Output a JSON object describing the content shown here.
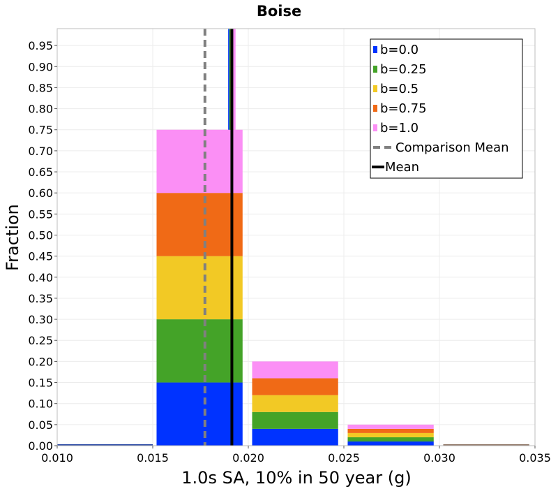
{
  "chart_data": {
    "type": "bar",
    "subtype": "stacked-histogram",
    "title": "Boise",
    "xlabel": "1.0s SA, 10% in 50 year (g)",
    "ylabel": "Fraction",
    "xlim": [
      0.01,
      0.035
    ],
    "ylim": [
      0.0,
      0.99
    ],
    "xticks": [
      "0.010",
      "0.015",
      "0.020",
      "0.025",
      "0.030",
      "0.035"
    ],
    "yticks": [
      "0.00",
      "0.05",
      "0.10",
      "0.15",
      "0.20",
      "0.25",
      "0.30",
      "0.35",
      "0.40",
      "0.45",
      "0.50",
      "0.55",
      "0.60",
      "0.65",
      "0.70",
      "0.75",
      "0.80",
      "0.85",
      "0.90",
      "0.95"
    ],
    "grid": true,
    "bins": [
      {
        "x0": 0.01,
        "x1": 0.015
      },
      {
        "x0": 0.0152,
        "x1": 0.0197
      },
      {
        "x0": 0.0202,
        "x1": 0.0247
      },
      {
        "x0": 0.0252,
        "x1": 0.0297
      },
      {
        "x0": 0.0302,
        "x1": 0.0347
      }
    ],
    "series": [
      {
        "name": "b=0.0",
        "color": "#0033ff",
        "values": [
          0.0,
          0.15,
          0.04,
          0.01,
          0.0
        ]
      },
      {
        "name": "b=0.25",
        "color": "#44a328",
        "values": [
          0.0,
          0.15,
          0.04,
          0.01,
          0.0
        ]
      },
      {
        "name": "b=0.5",
        "color": "#f2c925",
        "values": [
          0.0,
          0.15,
          0.04,
          0.01,
          0.0
        ]
      },
      {
        "name": "b=0.75",
        "color": "#f06a16",
        "values": [
          0.0,
          0.15,
          0.04,
          0.01,
          0.0
        ]
      },
      {
        "name": "b=1.0",
        "color": "#fb8ff5",
        "values": [
          0.0,
          0.15,
          0.04,
          0.01,
          0.0
        ]
      }
    ],
    "baseline_colors": [
      "#2040a0",
      "#8a7060"
    ],
    "mean_lines": [
      {
        "name": "b=0.0 mean",
        "color": "#0033ff",
        "x": 0.01902
      },
      {
        "name": "b=0.25 mean",
        "color": "#44a328",
        "x": 0.01908
      },
      {
        "name": "b=0.5 mean",
        "color": "#f2c925",
        "x": 0.01914
      },
      {
        "name": "b=0.75 mean",
        "color": "#f06a16",
        "x": 0.0192
      },
      {
        "name": "b=1.0 mean",
        "color": "#fb8ff5",
        "x": 0.01926
      }
    ],
    "overall_mean": {
      "name": "Mean",
      "color": "#000000",
      "x": 0.01914
    },
    "comparison_mean": {
      "name": "Comparison Mean",
      "color": "#808080",
      "x": 0.01773
    },
    "legend": {
      "placement": "top-right",
      "entries": [
        {
          "label": "b=0.0",
          "color": "#0033ff",
          "kind": "swatch"
        },
        {
          "label": "b=0.25",
          "color": "#44a328",
          "kind": "swatch"
        },
        {
          "label": "b=0.5",
          "color": "#f2c925",
          "kind": "swatch"
        },
        {
          "label": "b=0.75",
          "color": "#f06a16",
          "kind": "swatch"
        },
        {
          "label": "b=1.0",
          "color": "#fb8ff5",
          "kind": "swatch"
        },
        {
          "label": "Comparison Mean",
          "color": "#808080",
          "kind": "dashed"
        },
        {
          "label": "Mean",
          "color": "#000000",
          "kind": "solid"
        }
      ]
    }
  }
}
